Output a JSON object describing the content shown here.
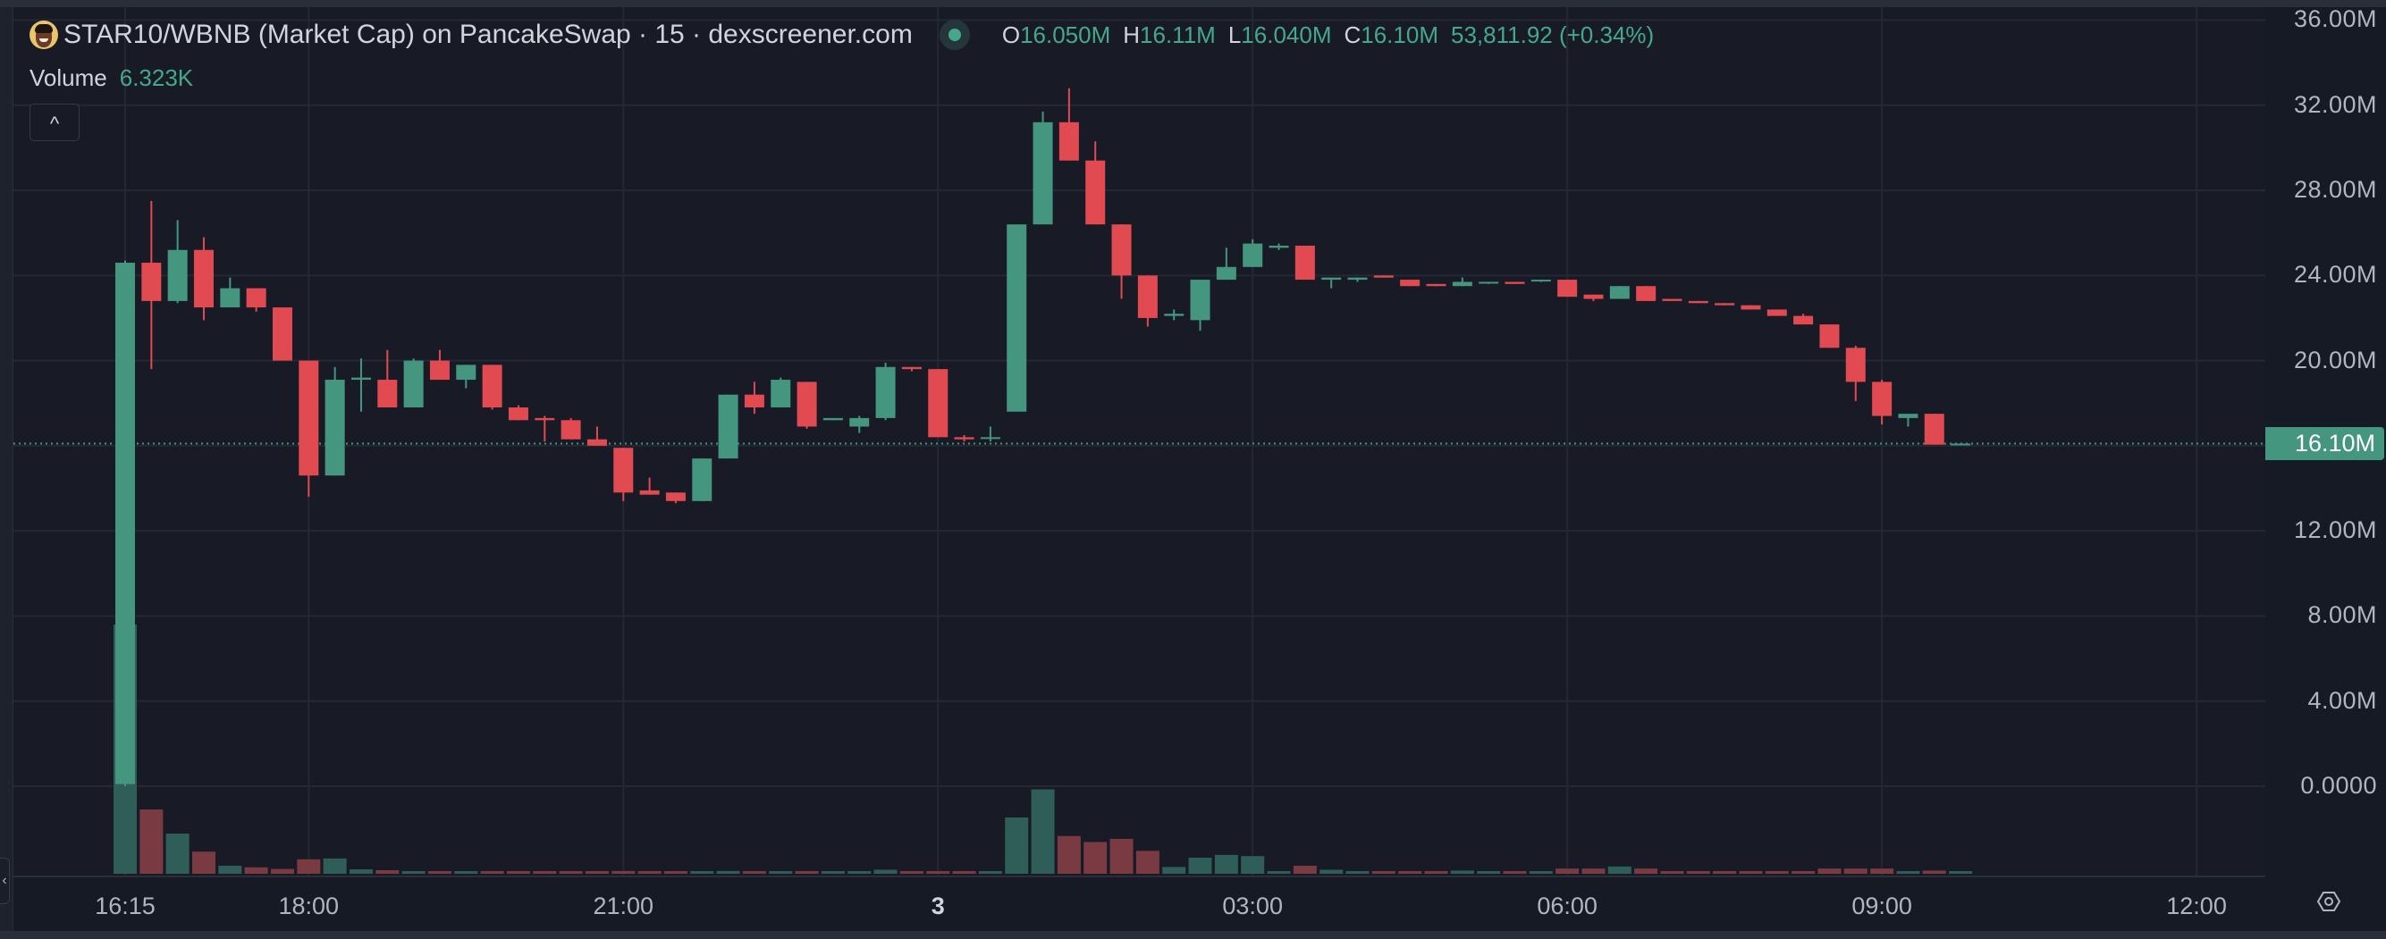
{
  "header": {
    "title": "STAR10/WBNB (Market Cap) on PancakeSwap · 15 · dexscreener.com",
    "status": "market-open",
    "ohlc": {
      "o_label": "O",
      "o_value": "16.050M",
      "h_label": "H",
      "h_value": "16.11M",
      "l_label": "L",
      "l_value": "16.040M",
      "c_label": "C",
      "c_value": "16.10M",
      "change": "53,811.92 (+0.34%)"
    },
    "volume_label": "Volume",
    "volume_value": "6.323K",
    "collapse_button": "^"
  },
  "colors": {
    "up": "#45967e",
    "down": "#e04a50",
    "up_volume": "#2f5e58",
    "down_volume": "#7a3a42",
    "background": "#181b26",
    "grid": "#242835",
    "text": "#b2b5be"
  },
  "price_axis": {
    "labels": [
      "36.00M",
      "32.00M",
      "28.00M",
      "24.00M",
      "20.00M",
      "12.00M",
      "8.00M",
      "4.00M",
      "0.0000"
    ],
    "current_price_label": "16.10M"
  },
  "time_axis": {
    "labels": [
      {
        "text": "16:15",
        "bold": false
      },
      {
        "text": "18:00",
        "bold": false
      },
      {
        "text": "21:00",
        "bold": false
      },
      {
        "text": "3",
        "bold": true
      },
      {
        "text": "03:00",
        "bold": false
      },
      {
        "text": "06:00",
        "bold": false
      },
      {
        "text": "09:00",
        "bold": false
      },
      {
        "text": "12:00",
        "bold": false
      }
    ]
  },
  "chart_data": {
    "type": "candlestick",
    "title": "STAR10/WBNB (Market Cap) on PancakeSwap · 15 · dexscreener.com",
    "interval": "15",
    "xlabel": "",
    "ylabel": "Market Cap",
    "ylim": [
      0,
      36
    ],
    "y_unit": "M",
    "y_ticks": [
      0,
      4,
      8,
      12,
      16.1,
      20,
      24,
      28,
      32,
      36
    ],
    "x_ticks": [
      "16:15",
      "18:00",
      "21:00",
      "3",
      "03:00",
      "06:00",
      "09:00",
      "12:00"
    ],
    "grid": true,
    "last_price": 16.1,
    "candles": [
      {
        "o": 0.1,
        "h": 24.7,
        "l": 0.0,
        "c": 24.6,
        "v": 6.2
      },
      {
        "o": 24.6,
        "h": 27.5,
        "l": 19.6,
        "c": 22.8,
        "v": 1.6
      },
      {
        "o": 22.8,
        "h": 26.6,
        "l": 22.7,
        "c": 25.2,
        "v": 1.0
      },
      {
        "o": 25.2,
        "h": 25.8,
        "l": 21.9,
        "c": 22.5,
        "v": 0.55
      },
      {
        "o": 22.5,
        "h": 23.9,
        "l": 22.5,
        "c": 23.4,
        "v": 0.2
      },
      {
        "o": 23.4,
        "h": 23.4,
        "l": 22.3,
        "c": 22.5,
        "v": 0.16
      },
      {
        "o": 22.5,
        "h": 22.5,
        "l": 20.0,
        "c": 20.0,
        "v": 0.12
      },
      {
        "o": 20.0,
        "h": 20.0,
        "l": 13.6,
        "c": 14.6,
        "v": 0.36
      },
      {
        "o": 14.6,
        "h": 19.7,
        "l": 14.6,
        "c": 19.1,
        "v": 0.38
      },
      {
        "o": 19.1,
        "h": 20.1,
        "l": 17.6,
        "c": 19.2,
        "v": 0.11
      },
      {
        "o": 19.1,
        "h": 20.5,
        "l": 17.8,
        "c": 17.8,
        "v": 0.09
      },
      {
        "o": 17.8,
        "h": 20.1,
        "l": 17.8,
        "c": 20.0,
        "v": 0.06
      },
      {
        "o": 20.0,
        "h": 20.5,
        "l": 19.1,
        "c": 19.1,
        "v": 0.06
      },
      {
        "o": 19.1,
        "h": 19.8,
        "l": 18.7,
        "c": 19.8,
        "v": 0.03
      },
      {
        "o": 19.8,
        "h": 19.8,
        "l": 17.7,
        "c": 17.8,
        "v": 0.06
      },
      {
        "o": 17.8,
        "h": 17.9,
        "l": 17.2,
        "c": 17.2,
        "v": 0.05
      },
      {
        "o": 17.3,
        "h": 17.4,
        "l": 16.2,
        "c": 17.2,
        "v": 0.04
      },
      {
        "o": 17.2,
        "h": 17.3,
        "l": 16.3,
        "c": 16.3,
        "v": 0.06
      },
      {
        "o": 16.3,
        "h": 16.9,
        "l": 16.0,
        "c": 16.0,
        "v": 0.06
      },
      {
        "o": 15.9,
        "h": 15.9,
        "l": 13.4,
        "c": 13.8,
        "v": 0.07
      },
      {
        "o": 13.9,
        "h": 14.5,
        "l": 13.7,
        "c": 13.7,
        "v": 0.05
      },
      {
        "o": 13.8,
        "h": 13.8,
        "l": 13.3,
        "c": 13.4,
        "v": 0.05
      },
      {
        "o": 13.4,
        "h": 15.4,
        "l": 13.4,
        "c": 15.4,
        "v": 0.05
      },
      {
        "o": 15.4,
        "h": 18.4,
        "l": 15.4,
        "c": 18.4,
        "v": 0.07
      },
      {
        "o": 18.4,
        "h": 19.0,
        "l": 17.5,
        "c": 17.8,
        "v": 0.06
      },
      {
        "o": 17.8,
        "h": 19.2,
        "l": 17.8,
        "c": 19.1,
        "v": 0.04
      },
      {
        "o": 19.0,
        "h": 19.0,
        "l": 16.8,
        "c": 16.9,
        "v": 0.06
      },
      {
        "o": 17.2,
        "h": 17.3,
        "l": 17.2,
        "c": 17.3,
        "v": 0.05
      },
      {
        "o": 16.9,
        "h": 17.4,
        "l": 16.6,
        "c": 17.3,
        "v": 0.04
      },
      {
        "o": 17.3,
        "h": 19.9,
        "l": 17.2,
        "c": 19.7,
        "v": 0.1
      },
      {
        "o": 19.7,
        "h": 19.7,
        "l": 19.5,
        "c": 19.6,
        "v": 0.04
      },
      {
        "o": 19.6,
        "h": 19.6,
        "l": 16.4,
        "c": 16.4,
        "v": 0.05
      },
      {
        "o": 16.4,
        "h": 16.5,
        "l": 16.2,
        "c": 16.3,
        "v": 0.03
      },
      {
        "o": 16.4,
        "h": 16.9,
        "l": 16.2,
        "c": 16.4,
        "v": 0.04
      },
      {
        "o": 17.6,
        "h": 17.6,
        "l": 17.6,
        "c": 26.4,
        "v": 1.4
      },
      {
        "o": 26.4,
        "h": 31.7,
        "l": 26.4,
        "c": 31.2,
        "v": 2.1
      },
      {
        "o": 31.2,
        "h": 32.8,
        "l": 29.4,
        "c": 29.4,
        "v": 0.94
      },
      {
        "o": 29.4,
        "h": 30.3,
        "l": 26.4,
        "c": 26.4,
        "v": 0.79
      },
      {
        "o": 26.4,
        "h": 26.4,
        "l": 22.9,
        "c": 24.0,
        "v": 0.87
      },
      {
        "o": 24.0,
        "h": 24.0,
        "l": 21.6,
        "c": 22.0,
        "v": 0.57
      },
      {
        "o": 22.1,
        "h": 22.4,
        "l": 21.9,
        "c": 22.2,
        "v": 0.17
      },
      {
        "o": 21.9,
        "h": 23.8,
        "l": 21.4,
        "c": 23.8,
        "v": 0.4
      },
      {
        "o": 23.8,
        "h": 25.3,
        "l": 23.8,
        "c": 24.4,
        "v": 0.47
      },
      {
        "o": 24.4,
        "h": 25.7,
        "l": 24.4,
        "c": 25.5,
        "v": 0.44
      },
      {
        "o": 25.3,
        "h": 25.5,
        "l": 25.2,
        "c": 25.4,
        "v": 0.06
      },
      {
        "o": 25.4,
        "h": 25.4,
        "l": 23.8,
        "c": 23.8,
        "v": 0.2
      },
      {
        "o": 23.8,
        "h": 23.8,
        "l": 23.4,
        "c": 23.9,
        "v": 0.1
      },
      {
        "o": 23.8,
        "h": 23.9,
        "l": 23.7,
        "c": 23.9,
        "v": 0.04
      },
      {
        "o": 24.0,
        "h": 24.0,
        "l": 23.9,
        "c": 23.9,
        "v": 0.05
      },
      {
        "o": 23.8,
        "h": 23.8,
        "l": 23.5,
        "c": 23.5,
        "v": 0.05
      },
      {
        "o": 23.6,
        "h": 23.6,
        "l": 23.5,
        "c": 23.5,
        "v": 0.04
      },
      {
        "o": 23.5,
        "h": 23.9,
        "l": 23.5,
        "c": 23.7,
        "v": 0.08
      },
      {
        "o": 23.7,
        "h": 23.7,
        "l": 23.6,
        "c": 23.7,
        "v": 0.04
      },
      {
        "o": 23.7,
        "h": 23.7,
        "l": 23.6,
        "c": 23.6,
        "v": 0.04
      },
      {
        "o": 23.8,
        "h": 23.8,
        "l": 23.7,
        "c": 23.8,
        "v": 0.04
      },
      {
        "o": 23.8,
        "h": 23.8,
        "l": 23.0,
        "c": 23.0,
        "v": 0.13
      },
      {
        "o": 23.1,
        "h": 23.1,
        "l": 22.8,
        "c": 22.9,
        "v": 0.13
      },
      {
        "o": 22.9,
        "h": 23.5,
        "l": 22.9,
        "c": 23.5,
        "v": 0.18
      },
      {
        "o": 23.5,
        "h": 23.5,
        "l": 22.8,
        "c": 22.8,
        "v": 0.13
      },
      {
        "o": 22.9,
        "h": 22.9,
        "l": 22.8,
        "c": 22.8,
        "v": 0.04
      },
      {
        "o": 22.8,
        "h": 22.8,
        "l": 22.7,
        "c": 22.7,
        "v": 0.04
      },
      {
        "o": 22.7,
        "h": 22.7,
        "l": 22.6,
        "c": 22.6,
        "v": 0.04
      },
      {
        "o": 22.6,
        "h": 22.6,
        "l": 22.4,
        "c": 22.4,
        "v": 0.04
      },
      {
        "o": 22.4,
        "h": 22.4,
        "l": 22.1,
        "c": 22.1,
        "v": 0.04
      },
      {
        "o": 22.1,
        "h": 22.2,
        "l": 21.7,
        "c": 21.7,
        "v": 0.04
      },
      {
        "o": 21.7,
        "h": 21.7,
        "l": 20.6,
        "c": 20.6,
        "v": 0.13
      },
      {
        "o": 20.6,
        "h": 20.7,
        "l": 18.1,
        "c": 19.0,
        "v": 0.13
      },
      {
        "o": 19.0,
        "h": 19.1,
        "l": 17.0,
        "c": 17.4,
        "v": 0.13
      },
      {
        "o": 17.3,
        "h": 17.4,
        "l": 16.9,
        "c": 17.5,
        "v": 0.04
      },
      {
        "o": 17.5,
        "h": 17.5,
        "l": 16.05,
        "c": 16.05,
        "v": 0.08
      },
      {
        "o": 16.05,
        "h": 16.11,
        "l": 16.04,
        "c": 16.1,
        "v": 0.04
      }
    ]
  }
}
